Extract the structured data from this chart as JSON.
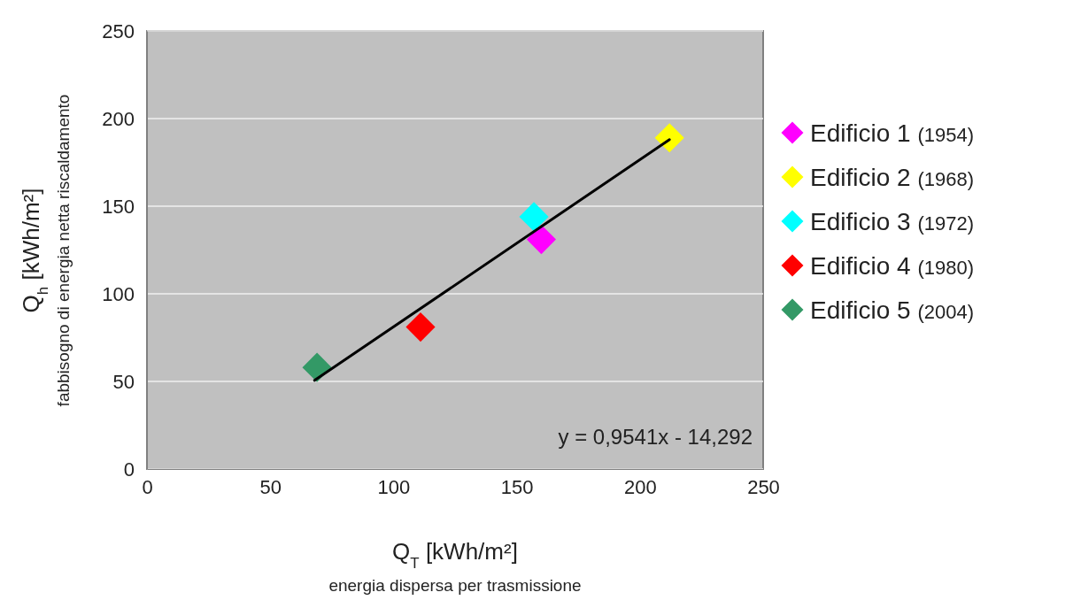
{
  "chart_data": {
    "type": "scatter",
    "xlabel": "Q$_{T}$ [kWh/m²]",
    "ylabel": "Q$_{h}$ [kWh/m²]",
    "annotations": [
      "energia dispersa per trasmissione",
      "fabbisogno di energia netta riscaldamento",
      "y = 0,9541x - 14,292"
    ],
    "xlim": [
      0,
      250
    ],
    "ylim": [
      0,
      250
    ],
    "xticks": [
      0,
      50,
      100,
      150,
      200,
      250
    ],
    "yticks": [
      0,
      50,
      100,
      150,
      200,
      250
    ],
    "grid": "y",
    "legend": "right",
    "marker": "diamond",
    "series": [
      {
        "name": "Edificio 1 (1954)",
        "color": "#ff00ff",
        "x": [
          160
        ],
        "values": [
          131
        ]
      },
      {
        "name": "Edificio 2 (1968)",
        "color": "#ffff00",
        "x": [
          212
        ],
        "values": [
          189
        ]
      },
      {
        "name": "Edificio 3 (1972)",
        "color": "#00ffff",
        "x": [
          157
        ],
        "values": [
          144
        ]
      },
      {
        "name": "Edificio 4 (1980)",
        "color": "#ff0000",
        "x": [
          111
        ],
        "values": [
          81
        ]
      },
      {
        "name": "Edificio 5 (2004)",
        "color": "#339966",
        "x": [
          69
        ],
        "values": [
          58
        ]
      },
      {
        "type": "line",
        "color": "#000000",
        "marker": "none",
        "x": [
          68,
          212
        ],
        "values": [
          50.6,
          188
        ]
      }
    ]
  }
}
